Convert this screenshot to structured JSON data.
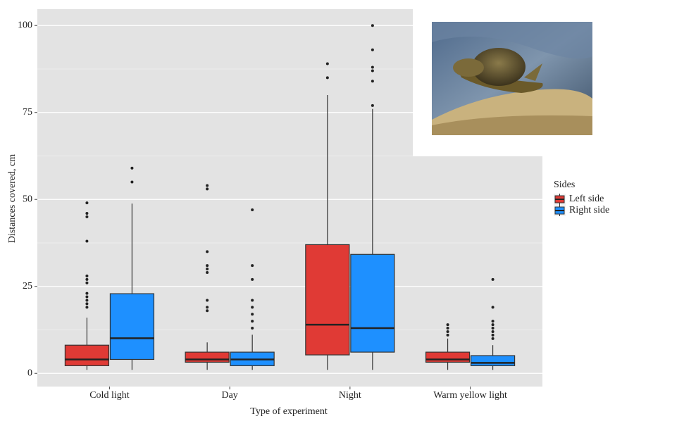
{
  "chart_data": {
    "type": "boxplot",
    "x_label": "Type of experiment",
    "y_label": "Distances covered, cm",
    "categories": [
      "Cold light",
      "Day",
      "Night",
      "Warm yellow light"
    ],
    "ylim": [
      -3.8,
      104.7
    ],
    "yticks": [
      0,
      25,
      50,
      75,
      100
    ],
    "minor_yticks": [
      12.5,
      37.5,
      62.5,
      87.5
    ],
    "grid": true,
    "legend_title": "Sides",
    "legend_position": "right",
    "series": [
      {
        "name": "Left side",
        "color": "#e03a35",
        "boxes": [
          {
            "low": 1,
            "q1": 2.2,
            "median": 4,
            "q3": 8.1,
            "high": 16,
            "outliers": [
              49,
              46,
              45,
              38,
              28,
              27,
              26,
              23,
              22,
              21,
              20,
              19
            ]
          },
          {
            "low": 1,
            "q1": 3.2,
            "median": 4,
            "q3": 6.1,
            "high": 8.9,
            "outliers": [
              54,
              53,
              35,
              31,
              30,
              29,
              21,
              19,
              18
            ]
          },
          {
            "low": 1,
            "q1": 5.3,
            "median": 14,
            "q3": 37,
            "high": 80,
            "outliers": [
              89,
              85
            ]
          },
          {
            "low": 1,
            "q1": 3.2,
            "median": 4,
            "q3": 6.1,
            "high": 10,
            "outliers": [
              14,
              13,
              12,
              11
            ]
          }
        ]
      },
      {
        "name": "Right side",
        "color": "#1e90ff",
        "boxes": [
          {
            "low": 1,
            "q1": 4,
            "median": 10.1,
            "q3": 22.9,
            "high": 48.8,
            "outliers": [
              59,
              55
            ]
          },
          {
            "low": 1,
            "q1": 2.2,
            "median": 4,
            "q3": 6.1,
            "high": 11.1,
            "outliers": [
              47,
              31,
              27,
              21,
              19,
              17,
              15,
              13
            ]
          },
          {
            "low": 1,
            "q1": 6.1,
            "median": 13,
            "q3": 34.2,
            "high": 76,
            "outliers": [
              100,
              93,
              88,
              87,
              84,
              77
            ]
          },
          {
            "low": 1,
            "q1": 2.2,
            "median": 3,
            "q3": 5.1,
            "high": 8.1,
            "outliers": [
              27,
              19,
              15,
              14,
              13,
              12,
              11,
              10
            ]
          }
        ]
      }
    ]
  }
}
